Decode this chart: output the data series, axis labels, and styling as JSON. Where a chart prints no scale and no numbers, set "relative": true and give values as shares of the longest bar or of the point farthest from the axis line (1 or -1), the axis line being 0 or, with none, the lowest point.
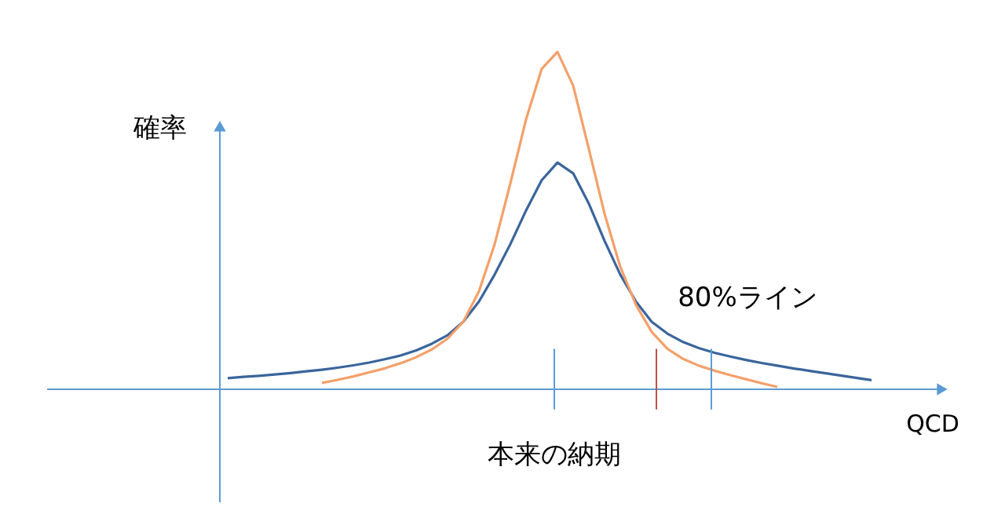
{
  "chart_data": {
    "type": "line",
    "relative": true,
    "xlabel": "QCD",
    "ylabel": "確率",
    "marker": "none",
    "line_style": "solid",
    "categories": [
      null,
      null,
      null,
      null,
      null,
      null,
      null,
      null,
      null,
      null,
      null,
      null,
      null,
      null,
      null,
      null,
      null,
      null,
      null,
      null,
      null,
      null,
      null,
      null,
      null,
      null,
      null,
      null,
      null,
      null,
      null,
      null,
      null,
      null,
      null,
      null,
      null,
      null,
      null,
      null,
      null,
      null
    ],
    "series": [
      {
        "color": "#3a659c",
        "values": [
          0.033,
          0.037,
          0.04,
          0.044,
          0.048,
          0.053,
          0.058,
          0.064,
          0.071,
          0.079,
          0.089,
          0.1,
          0.115,
          0.135,
          0.16,
          0.2,
          0.26,
          0.34,
          0.43,
          0.53,
          0.62,
          0.672,
          0.64,
          0.55,
          0.44,
          0.34,
          0.26,
          0.2,
          0.165,
          0.14,
          0.122,
          0.108,
          0.097,
          0.087,
          0.078,
          0.07,
          0.062,
          0.055,
          0.048,
          0.041,
          0.034,
          0.027
        ]
      },
      {
        "color": "#f4a06a",
        "values": [
          null,
          null,
          null,
          null,
          null,
          null,
          0.019,
          0.028,
          0.038,
          0.05,
          0.062,
          0.077,
          0.095,
          0.118,
          0.15,
          0.2,
          0.29,
          0.43,
          0.61,
          0.8,
          0.95,
          1,
          0.9,
          0.712,
          0.52,
          0.363,
          0.25,
          0.17,
          0.12,
          0.09,
          0.07,
          0.055,
          0.042,
          0.03,
          0.018,
          0.007,
          null,
          null,
          null,
          null,
          null,
          null
        ]
      }
    ],
    "annotations": [
      "本来の納期",
      "80%ライン"
    ]
  }
}
